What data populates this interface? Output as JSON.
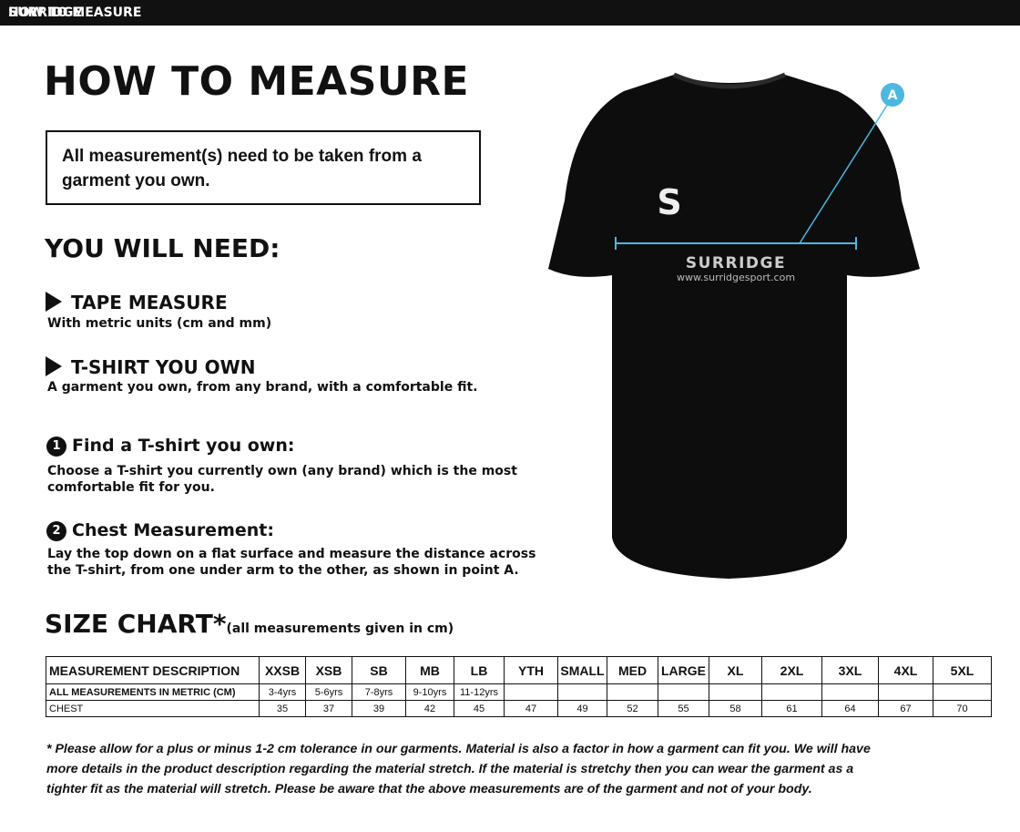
{
  "header": {
    "bar_title": "HOW TO MEASURE",
    "logo": "SURRIDGE"
  },
  "title": "HOW TO MEASURE",
  "notice": "All measurement(s) need to be taken from a garment you own.",
  "need": {
    "heading": "YOU WILL NEED:",
    "items": [
      {
        "title": "TAPE MEASURE",
        "text": "With metric units (cm and mm)"
      },
      {
        "title": "T-SHIRT YOU OWN",
        "text": "A garment you own, from any brand, with a comfortable fit."
      }
    ]
  },
  "steps": [
    {
      "number": "1",
      "title": "Find a T-shirt you own:",
      "text": "Choose a T-shirt you currently own (any brand) which is the most comfortable fit for you."
    },
    {
      "number": "2",
      "title": "Chest Measurement:",
      "text": "Lay the top down on a flat surface and measure the distance across the T-shirt, from one under arm to the other, as shown in point A."
    }
  ],
  "shirt": {
    "marker": "A",
    "brand": "SURRIDGE",
    "url": "www.surridgesport.com"
  },
  "size_chart": {
    "heading": "SIZE CHART*",
    "subheading": "(all measurements given in cm)",
    "table": {
      "header": [
        "MEASUREMENT DESCRIPTION",
        "XXSB",
        "XSB",
        "SB",
        "MB",
        "LB",
        "YTH",
        "SMALL",
        "MED",
        "LARGE",
        "XL",
        "2XL",
        "3XL",
        "4XL",
        "5XL"
      ],
      "rows": [
        [
          "ALL MEASUREMENTS IN METRIC (CM)",
          "3-4yrs",
          "5-6yrs",
          "7-8yrs",
          "9-10yrs",
          "11-12yrs"
        ],
        [
          "CHEST",
          35,
          37,
          39,
          42,
          45,
          47,
          49,
          52,
          55,
          58,
          61,
          64,
          67,
          70
        ]
      ]
    }
  },
  "footnote": [
    "* Please allow for a plus or minus 1-2 cm tolerance in our garments. Material is also a factor in how a garment can fit you. We will have",
    "more details in the product description regarding the material stretch.  If the material is stretchy then you can wear the garment as a",
    "tighter fit as the material will stretch.  Please be aware that the above measurements are of the garment and not of your body."
  ]
}
